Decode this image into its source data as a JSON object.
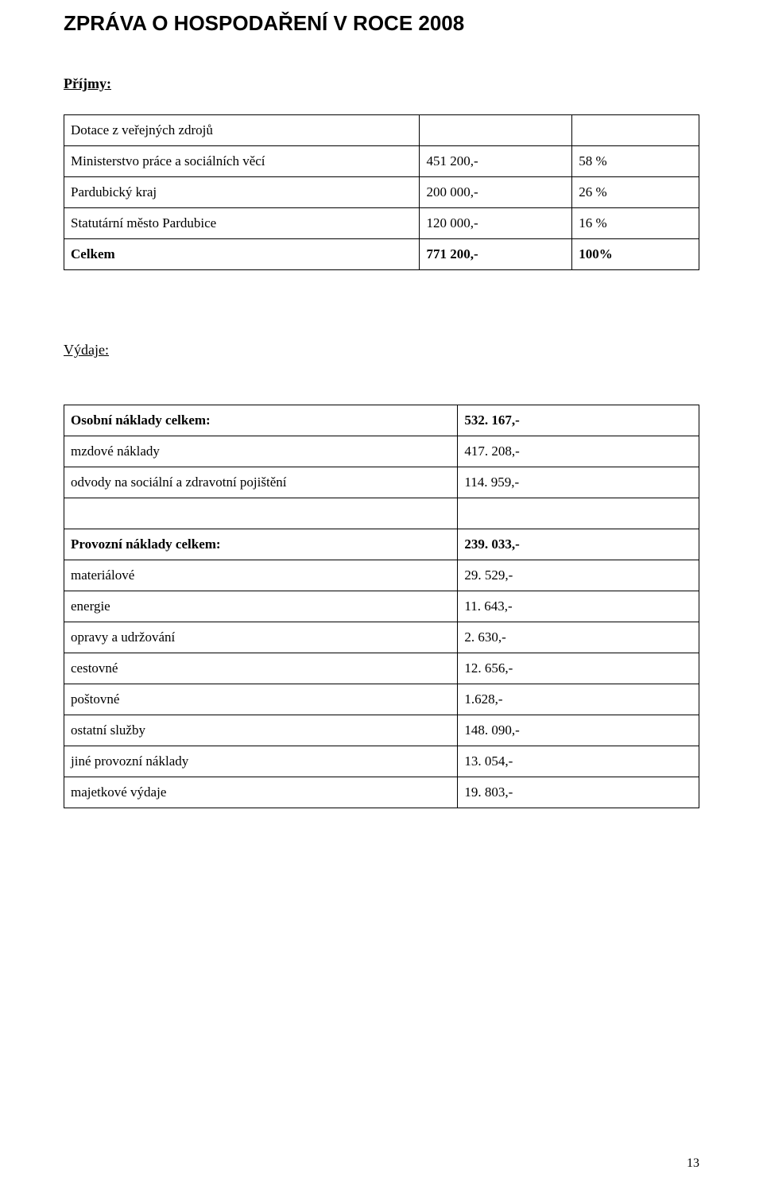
{
  "heading": "ZPRÁVA O HOSPODAŘENÍ V ROCE 2008",
  "income": {
    "section_label": "Příjmy:",
    "sources_header": "Dotace z veřejných zdrojů",
    "rows": [
      {
        "label": "Ministerstvo práce a sociálních věcí",
        "amount": "451 200,-",
        "pct": "58 %"
      },
      {
        "label": "Pardubický kraj",
        "amount": "200 000,-",
        "pct": "26 %"
      },
      {
        "label": "Statutární město Pardubice",
        "amount": "120 000,-",
        "pct": "16 %"
      }
    ],
    "total": {
      "label": "Celkem",
      "amount": "771 200,-",
      "pct": "100%"
    }
  },
  "expenses": {
    "section_label": "Výdaje:",
    "personal": {
      "total": {
        "label": "Osobní náklady celkem:",
        "value": "532. 167,-"
      },
      "rows": [
        {
          "label": "mzdové náklady",
          "value": "417. 208,-"
        },
        {
          "label": "odvody na sociální a zdravotní pojištění",
          "value": "114. 959,-"
        }
      ]
    },
    "operating": {
      "total": {
        "label": "Provozní náklady celkem:",
        "value": "239. 033,-"
      },
      "rows": [
        {
          "label": "materiálové",
          "value": "29. 529,-"
        },
        {
          "label": "energie",
          "value": "11. 643,-"
        },
        {
          "label": "opravy a udržování",
          "value": "2. 630,-"
        },
        {
          "label": "cestovné",
          "value": "12. 656,-"
        },
        {
          "label": "poštovné",
          "value": "1.628,-"
        },
        {
          "label": "ostatní služby",
          "value": "148. 090,-"
        },
        {
          "label": "jiné provozní náklady",
          "value": "13. 054,-"
        },
        {
          "label": "majetkové výdaje",
          "value": "19. 803,-"
        }
      ]
    }
  },
  "page_number": "13",
  "colors": {
    "background": "#ffffff",
    "text": "#000000",
    "border": "#000000"
  },
  "fonts": {
    "heading_family": "Arial",
    "body_family": "Book Antiqua",
    "heading_size_pt": 19,
    "section_size_pt": 13,
    "body_size_pt": 12
  }
}
